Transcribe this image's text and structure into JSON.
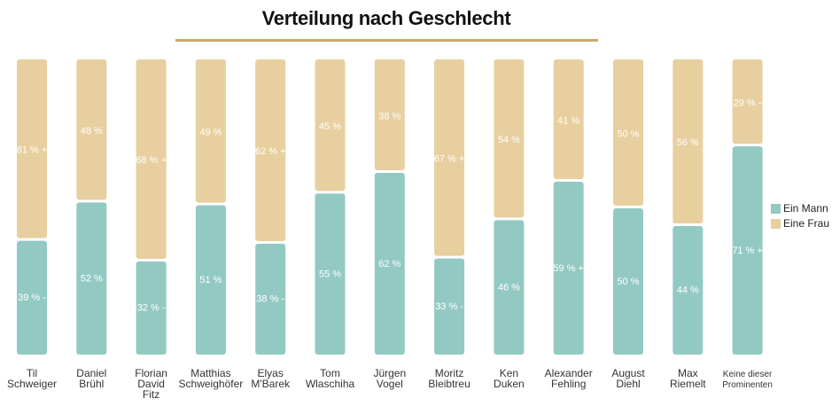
{
  "chart_data": {
    "type": "bar",
    "stacked": true,
    "title": "Verteilung nach Geschlecht",
    "categories": [
      "Til Schweiger",
      "Daniel Brühl",
      "Florian David Fitz",
      "Matthias Schweighöfer",
      "Elyas M'Barek",
      "Tom Wlaschiha",
      "Jürgen Vogel",
      "Moritz Bleibtreu",
      "Ken Duken",
      "Alexander Fehling",
      "August Diehl",
      "Max Riemelt",
      "Keine dieser Prominenten"
    ],
    "category_lines": [
      [
        "Til",
        "Schweiger"
      ],
      [
        "Daniel",
        "Brühl"
      ],
      [
        "Florian",
        "David",
        "Fitz"
      ],
      [
        "Matthias",
        "Schweighöfer"
      ],
      [
        "Elyas",
        "M'Barek"
      ],
      [
        "Tom",
        "Wlaschiha"
      ],
      [
        "Jürgen",
        "Vogel"
      ],
      [
        "Moritz",
        "Bleibtreu"
      ],
      [
        "Ken",
        "Duken"
      ],
      [
        "Alexander",
        "Fehling"
      ],
      [
        "August",
        "Diehl"
      ],
      [
        "Max",
        "Riemelt"
      ],
      [
        "Keine dieser",
        "Prominenten"
      ]
    ],
    "series": [
      {
        "name": "Ein Mann",
        "color": "#93c9c3",
        "values": [
          39,
          52,
          32,
          51,
          38,
          55,
          62,
          33,
          46,
          59,
          50,
          44,
          71
        ],
        "labels": [
          "39 % -",
          "52 %",
          "32 % -",
          "51 %",
          "38 % -",
          "55 %",
          "62 %",
          "33 % -",
          "46 %",
          "59 % +",
          "50 %",
          "44 %",
          "71 % +"
        ]
      },
      {
        "name": "Eine Frau",
        "color": "#e8cf9f",
        "values": [
          61,
          48,
          68,
          49,
          62,
          45,
          38,
          67,
          54,
          41,
          50,
          56,
          29
        ],
        "labels": [
          "61 % +",
          "48 %",
          "68 % +",
          "49 %",
          "62 % +",
          "45 %",
          "38 %",
          "67 % +",
          "54 %",
          "41 %",
          "50 %",
          "56 %",
          "29 % -"
        ]
      }
    ],
    "ylim": [
      0,
      100
    ],
    "legend_position": "right",
    "grid": false
  }
}
